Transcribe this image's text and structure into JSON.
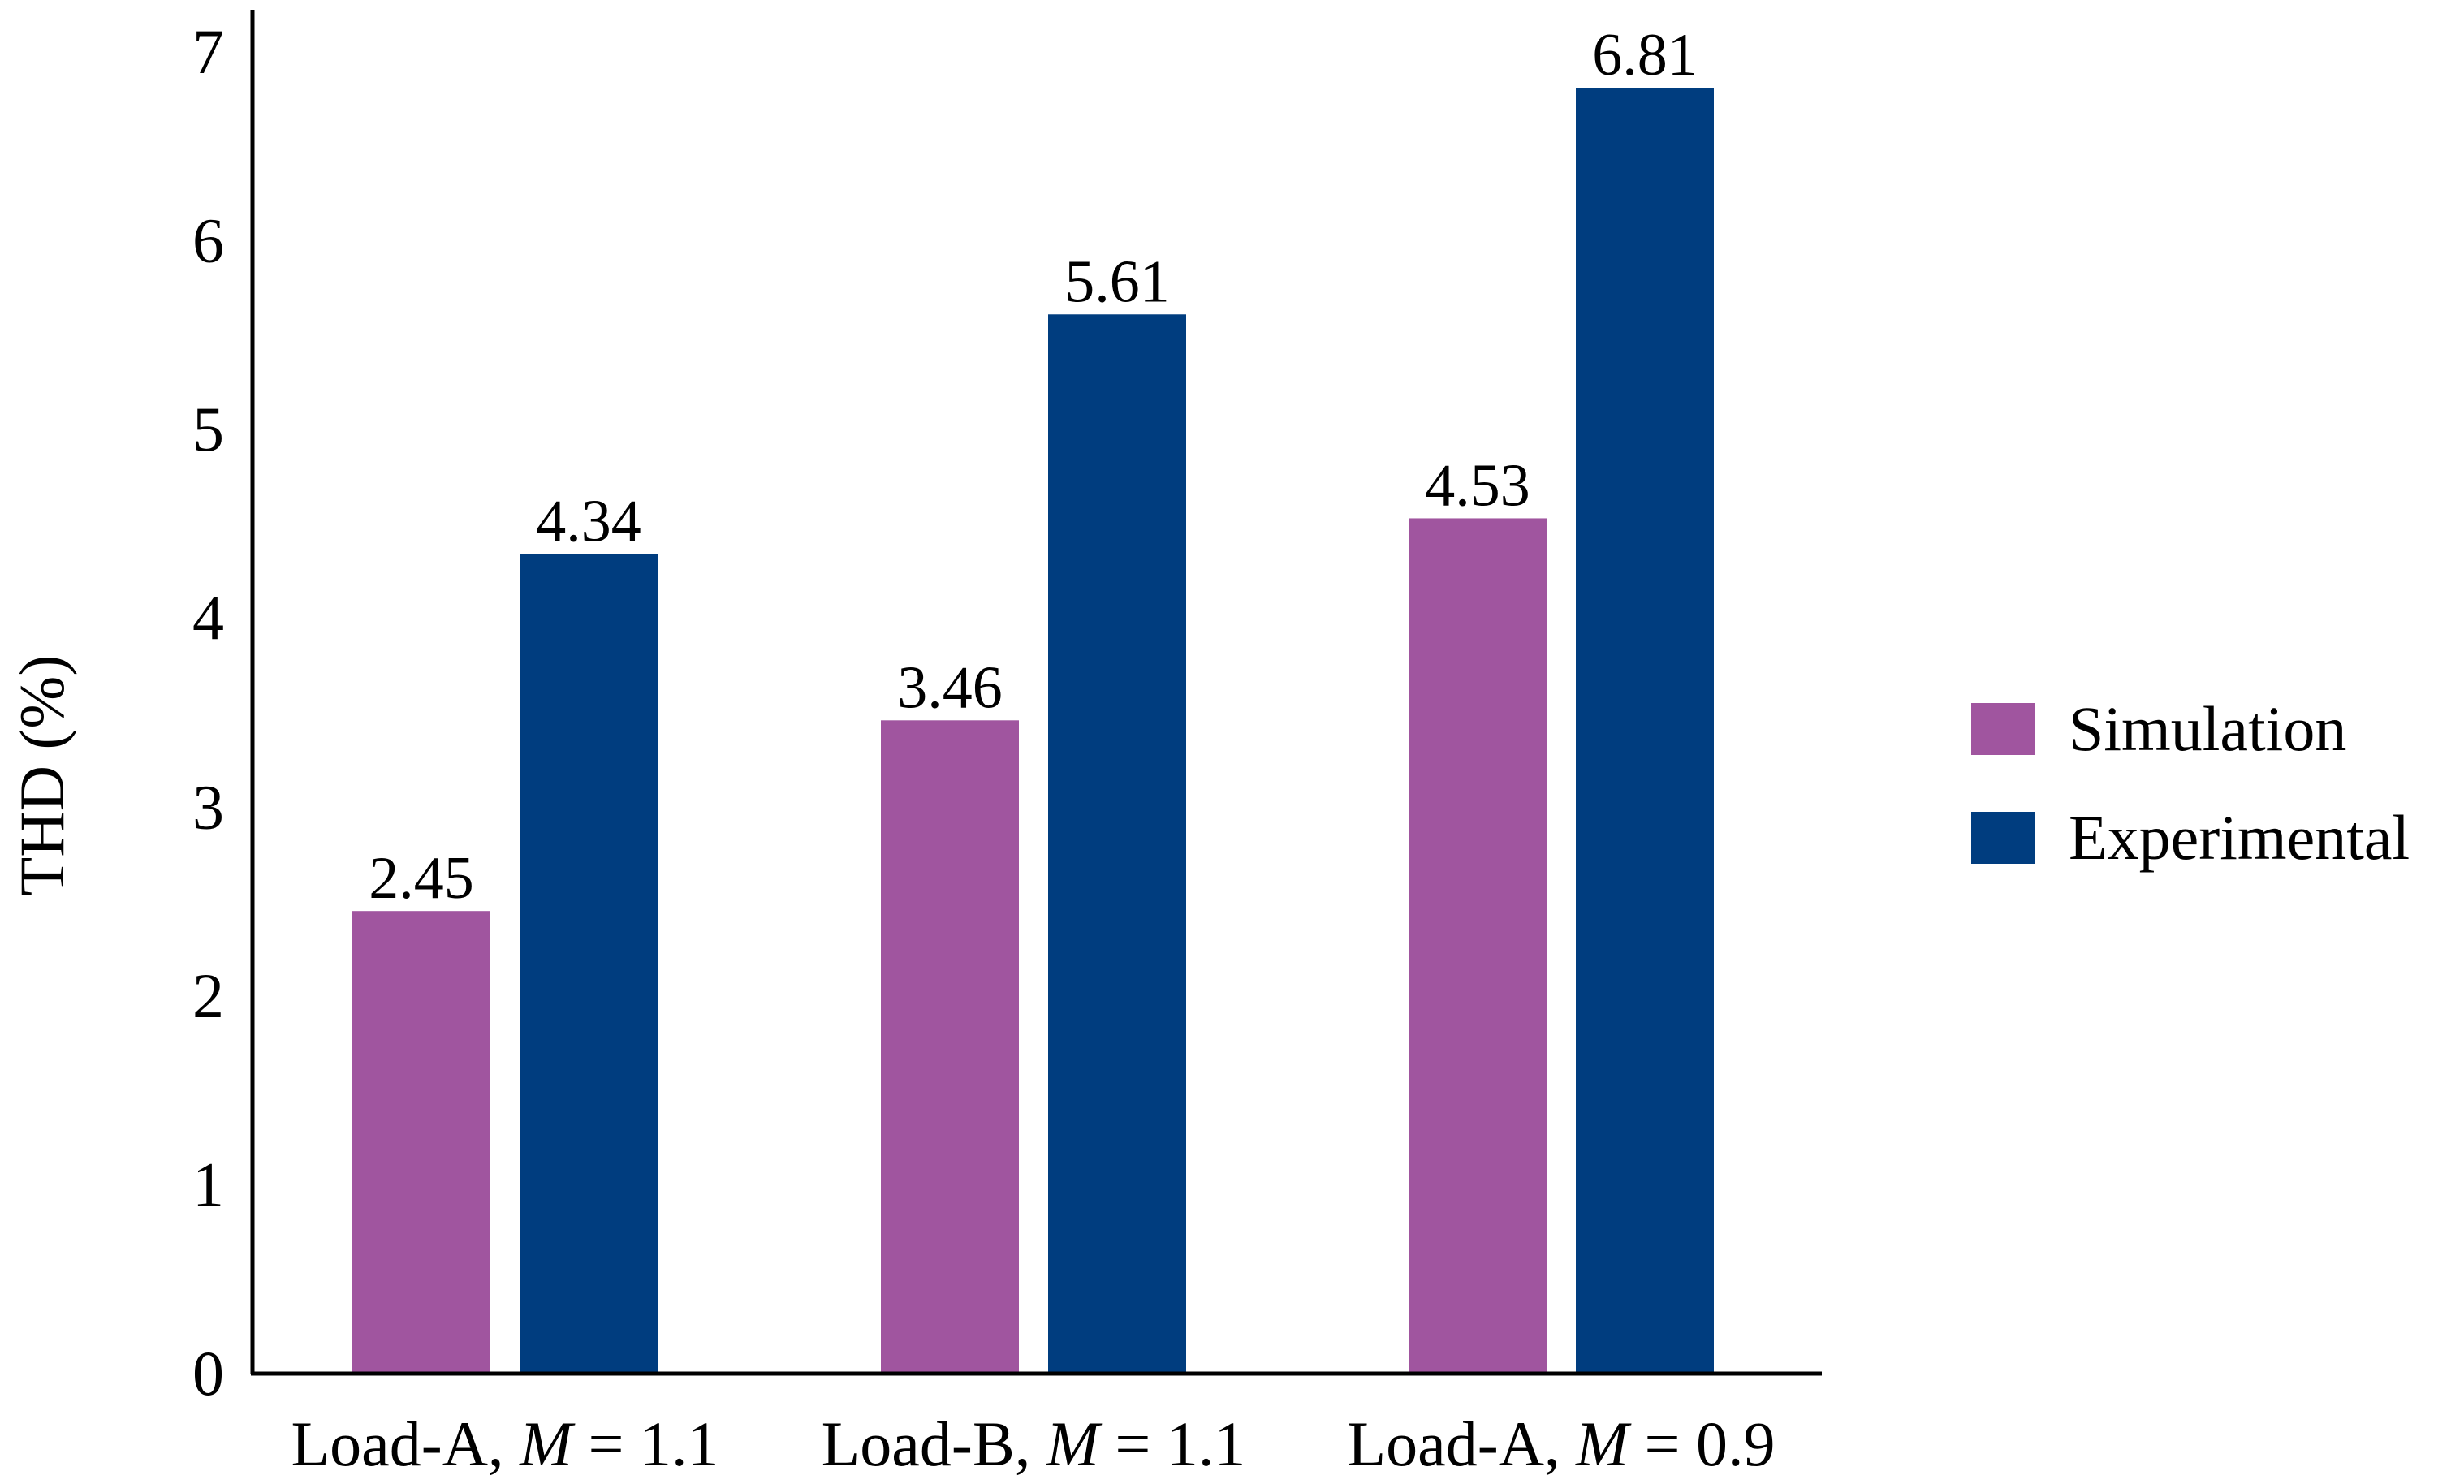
{
  "chart_data": {
    "type": "bar",
    "title": "",
    "xlabel": "",
    "ylabel": "THD (%)",
    "ylim": [
      0,
      7
    ],
    "yticks": [
      0,
      1,
      2,
      3,
      4,
      5,
      6,
      7
    ],
    "grid": false,
    "legend_position": "right",
    "categories": [
      {
        "prefix": "Load-A, ",
        "var": "M",
        "suffix": " = 1.1"
      },
      {
        "prefix": "Load-B, ",
        "var": "M",
        "suffix": " = 1.1"
      },
      {
        "prefix": "Load-A, ",
        "var": "M",
        "suffix": " = 0.9"
      }
    ],
    "series": [
      {
        "name": "Simulation",
        "color": "#a0559f",
        "values": [
          2.45,
          3.46,
          4.53
        ],
        "labels": [
          "2.45",
          "3.46",
          "4.53"
        ]
      },
      {
        "name": "Experimental",
        "color": "#003d7f",
        "values": [
          4.34,
          5.61,
          6.81
        ],
        "labels": [
          "4.34",
          "5.61",
          "6.81"
        ]
      }
    ]
  }
}
